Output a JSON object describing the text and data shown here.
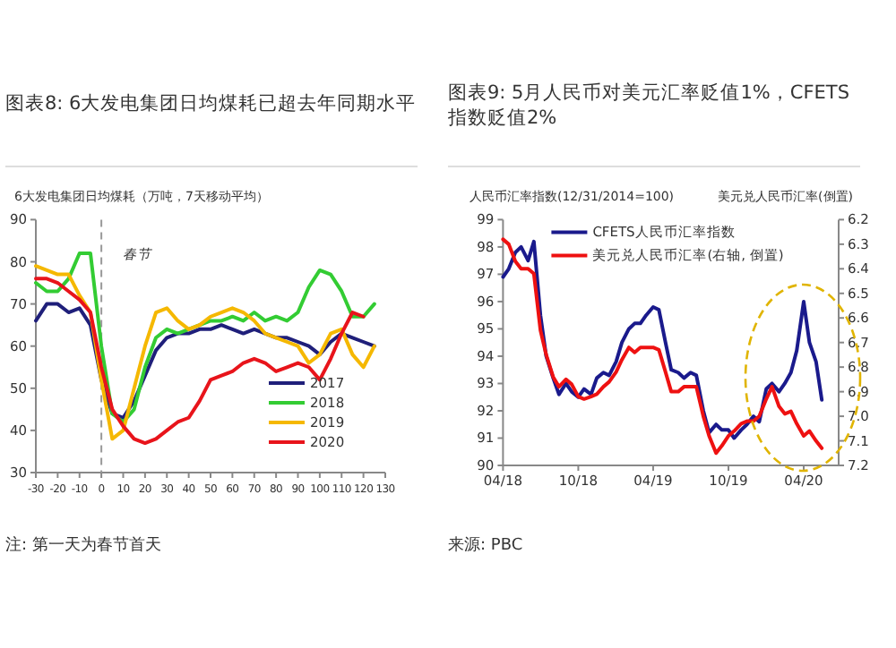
{
  "chart_data": [
    {
      "type": "line",
      "title": "图表8: 6大发电集团日均煤耗已超去年同期水平",
      "ylabel": "6大发电集团日均煤耗（万吨，7天移动平均）",
      "xlim": [
        -30,
        130
      ],
      "xticks": [
        -30,
        -20,
        -10,
        0,
        10,
        20,
        30,
        40,
        50,
        60,
        70,
        80,
        90,
        100,
        110,
        120,
        130
      ],
      "ylim": [
        30,
        90
      ],
      "yticks": [
        30,
        40,
        50,
        60,
        70,
        80,
        90
      ],
      "legend": "bottom right",
      "line_style": "solid",
      "ref_lines": [
        {
          "axis": "x",
          "value": 0,
          "label": "春节",
          "line_style": "dashed",
          "color": "#999999"
        }
      ],
      "annotations": [
        "注: 第一天为春节首天"
      ],
      "x": [
        -30,
        -25,
        -20,
        -15,
        -10,
        -5,
        0,
        5,
        10,
        15,
        20,
        25,
        30,
        35,
        40,
        45,
        50,
        55,
        60,
        65,
        70,
        75,
        80,
        85,
        90,
        95,
        100,
        105,
        110,
        115,
        120,
        125
      ],
      "series": [
        {
          "name": "2017",
          "color": "#1f1f7a",
          "values": [
            66,
            70,
            70,
            68,
            69,
            65,
            52,
            44,
            43,
            47,
            53,
            59,
            62,
            63,
            63,
            64,
            64,
            65,
            64,
            63,
            64,
            63,
            62,
            62,
            61,
            60,
            58,
            61,
            63,
            62,
            61,
            60
          ]
        },
        {
          "name": "2018",
          "color": "#33cc33",
          "values": [
            75,
            73,
            73,
            76,
            82,
            82,
            60,
            44,
            42,
            45,
            55,
            62,
            64,
            63,
            64,
            65,
            66,
            66,
            67,
            66,
            68,
            66,
            67,
            66,
            68,
            74,
            78,
            77,
            73,
            67,
            67,
            70
          ]
        },
        {
          "name": "2019",
          "color": "#f5b800",
          "values": [
            79,
            78,
            77,
            77,
            72,
            68,
            52,
            38,
            40,
            50,
            60,
            68,
            69,
            66,
            64,
            65,
            67,
            68,
            69,
            68,
            66,
            63,
            62,
            61,
            60,
            56,
            58,
            63,
            64,
            58,
            55,
            60
          ]
        },
        {
          "name": "2020",
          "color": "#e8141b",
          "values": [
            76,
            76,
            75,
            73,
            71,
            68,
            55,
            45,
            41,
            38,
            37,
            38,
            40,
            42,
            43,
            47,
            52,
            53,
            54,
            56,
            57,
            56,
            54,
            55,
            56,
            55,
            52,
            57,
            63,
            68,
            67,
            null
          ]
        }
      ]
    },
    {
      "type": "line",
      "title": "图表9: 5月人民币对美元汇率贬值1%，CFETS指数贬值2%",
      "ylabel": "人民币汇率指数(12/31/2014=100)",
      "y2label": "美元兑人民币汇率(倒置)",
      "xlim": [
        "2018-04-01",
        "2020-06-25"
      ],
      "xticks": [
        {
          "value": "2018-04-01",
          "label": "04/18"
        },
        {
          "value": "2018-10-01",
          "label": "10/18"
        },
        {
          "value": "2019-04-01",
          "label": "04/19"
        },
        {
          "value": "2019-10-01",
          "label": "10/19"
        },
        {
          "value": "2020-04-01",
          "label": "04/20"
        }
      ],
      "ylim": [
        90,
        99
      ],
      "yticks": [
        90,
        91,
        92,
        93,
        94,
        95,
        96,
        97,
        98,
        99
      ],
      "y2lim": [
        7.2,
        6.2
      ],
      "y2ticks": [
        7.2,
        7.1,
        {
          "value": 7.0,
          "label": "7.0"
        },
        6.9,
        6.8,
        6.7,
        6.6,
        6.5,
        6.4,
        6.3,
        6.2
      ],
      "legend": "top",
      "line_style": "solid",
      "annotations": [
        "来源: PBC"
      ],
      "x": [
        "2018-04-01",
        "2018-04-15",
        "2018-05-01",
        "2018-05-15",
        "2018-06-01",
        "2018-06-15",
        "2018-07-01",
        "2018-07-15",
        "2018-08-01",
        "2018-08-15",
        "2018-09-01",
        "2018-09-15",
        "2018-10-01",
        "2018-10-15",
        "2018-11-01",
        "2018-11-15",
        "2018-12-01",
        "2018-12-15",
        "2019-01-01",
        "2019-01-15",
        "2019-02-01",
        "2019-02-15",
        "2019-03-01",
        "2019-03-15",
        "2019-04-01",
        "2019-04-15",
        "2019-05-01",
        "2019-05-15",
        "2019-06-01",
        "2019-06-15",
        "2019-07-01",
        "2019-07-15",
        "2019-08-01",
        "2019-08-15",
        "2019-09-01",
        "2019-09-15",
        "2019-10-01",
        "2019-10-15",
        "2019-11-01",
        "2019-11-15",
        "2019-12-01",
        "2019-12-15",
        "2020-01-01",
        "2020-01-15",
        "2020-02-01",
        "2020-02-15",
        "2020-03-01",
        "2020-03-15",
        "2020-04-01",
        "2020-04-15",
        "2020-05-01",
        "2020-05-15"
      ],
      "series": [
        {
          "name": "CFETS人民币汇率指数",
          "color": "#1a1a8c",
          "values": [
            96.9,
            97.2,
            97.8,
            98.0,
            97.5,
            98.2,
            95.5,
            94.0,
            93.2,
            92.6,
            93.0,
            92.7,
            92.5,
            92.8,
            92.6,
            93.2,
            93.4,
            93.3,
            93.8,
            94.5,
            95.0,
            95.2,
            95.2,
            95.5,
            95.8,
            95.7,
            94.5,
            93.5,
            93.4,
            93.2,
            93.4,
            93.3,
            92.0,
            91.2,
            91.5,
            91.3,
            91.3,
            91.0,
            91.3,
            91.5,
            91.8,
            91.6,
            92.8,
            93.0,
            92.7,
            93.0,
            93.4,
            94.2,
            96.0,
            94.5,
            93.8,
            92.4
          ]
        },
        {
          "name": "美元兑人民币汇率(右轴, 倒置)",
          "color": "#ee1111",
          "axis": "y2",
          "values": [
            6.28,
            6.3,
            6.37,
            6.4,
            6.4,
            6.42,
            6.65,
            6.75,
            6.84,
            6.88,
            6.85,
            6.87,
            6.92,
            6.93,
            6.92,
            6.91,
            6.88,
            6.86,
            6.82,
            6.77,
            6.72,
            6.74,
            6.72,
            6.72,
            6.72,
            6.73,
            6.82,
            6.9,
            6.9,
            6.88,
            6.88,
            6.88,
            7.0,
            7.08,
            7.15,
            7.12,
            7.08,
            7.06,
            7.03,
            7.02,
            7.02,
            7.0,
            6.93,
            6.88,
            6.96,
            6.99,
            6.98,
            7.03,
            7.08,
            7.06,
            7.1,
            7.13
          ]
        }
      ]
    }
  ]
}
